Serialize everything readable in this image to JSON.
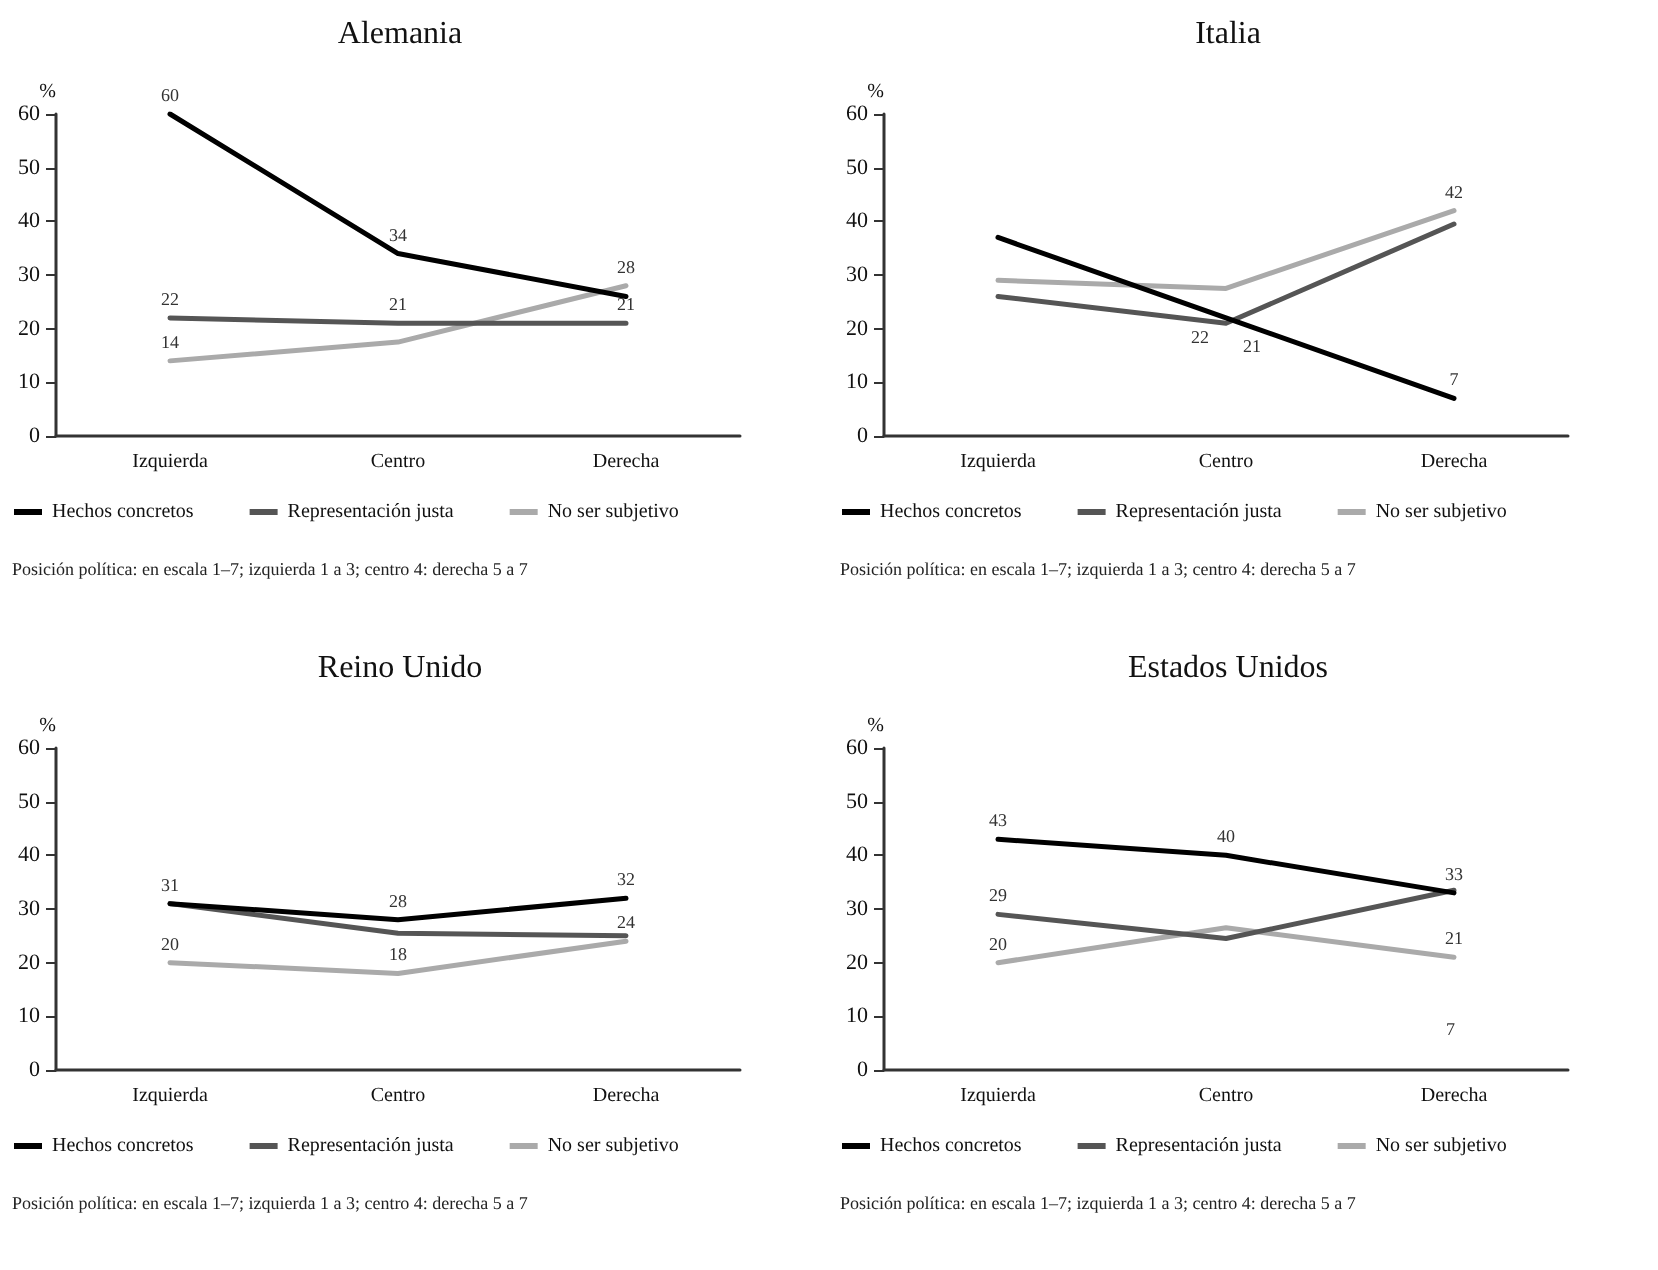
{
  "chart_data": [
    {
      "type": "line",
      "title": "Alemania",
      "ylabel": "%",
      "categories": [
        "Izquierda",
        "Centro",
        "Derecha"
      ],
      "ylim": [
        0,
        60
      ],
      "yticks": [
        0,
        10,
        20,
        30,
        40,
        50,
        60
      ],
      "grid": false,
      "legend": "bottom",
      "marker": "none",
      "line_style": "solid",
      "annotations": [
        "Posición política: en escala 1–7; izquierda 1 a 3; centro 4: derecha 5 a 7"
      ],
      "series": [
        {
          "name": "Hechos concretos",
          "color": "#000000",
          "values": [
            60,
            34,
            26
          ],
          "value_labels": [
            "60",
            "34",
            null
          ]
        },
        {
          "name": "Representación justa",
          "color": "#555555",
          "values": [
            22,
            21,
            21
          ],
          "value_labels": [
            "22",
            "21",
            "21"
          ]
        },
        {
          "name": "No ser subjetivo",
          "color": "#aaaaaa",
          "values": [
            14,
            17.5,
            28
          ],
          "value_labels": [
            "14",
            null,
            "28"
          ]
        }
      ]
    },
    {
      "type": "line",
      "title": "Italia",
      "ylabel": "%",
      "categories": [
        "Izquierda",
        "Centro",
        "Derecha"
      ],
      "ylim": [
        0,
        60
      ],
      "yticks": [
        0,
        10,
        20,
        30,
        40,
        50,
        60
      ],
      "grid": false,
      "legend": "bottom",
      "marker": "none",
      "line_style": "solid",
      "annotations": [
        "Posición política: en escala 1–7; izquierda 1 a 3; centro 4: derecha 5 a 7"
      ],
      "series": [
        {
          "name": "Hechos concretos",
          "color": "#000000",
          "values": [
            37,
            22,
            7
          ],
          "value_labels": [
            null,
            "22",
            "7"
          ]
        },
        {
          "name": "Representación justa",
          "color": "#555555",
          "values": [
            26,
            21,
            39.5
          ],
          "value_labels": [
            null,
            "21",
            null
          ]
        },
        {
          "name": "No ser subjetivo",
          "color": "#aaaaaa",
          "values": [
            29,
            27.5,
            42
          ],
          "value_labels": [
            null,
            null,
            "42"
          ]
        }
      ]
    },
    {
      "type": "line",
      "title": "Reino Unido",
      "ylabel": "%",
      "categories": [
        "Izquierda",
        "Centro",
        "Derecha"
      ],
      "ylim": [
        0,
        60
      ],
      "yticks": [
        0,
        10,
        20,
        30,
        40,
        50,
        60
      ],
      "grid": false,
      "legend": "bottom",
      "marker": "none",
      "line_style": "solid",
      "annotations": [
        "Posición política: en escala 1–7; izquierda 1 a 3; centro 4: derecha 5 a 7"
      ],
      "series": [
        {
          "name": "Hechos concretos",
          "color": "#000000",
          "values": [
            31,
            28,
            32
          ],
          "value_labels": [
            "31",
            "28",
            "32"
          ]
        },
        {
          "name": "Representación justa",
          "color": "#555555",
          "values": [
            31,
            25.5,
            25
          ],
          "value_labels": [
            null,
            null,
            null
          ]
        },
        {
          "name": "No ser subjetivo",
          "color": "#aaaaaa",
          "values": [
            20,
            18,
            24
          ],
          "value_labels": [
            "20",
            "18",
            "24"
          ]
        }
      ]
    },
    {
      "type": "line",
      "title": "Estados Unidos",
      "ylabel": "%",
      "categories": [
        "Izquierda",
        "Centro",
        "Derecha"
      ],
      "ylim": [
        0,
        60
      ],
      "yticks": [
        0,
        10,
        20,
        30,
        40,
        50,
        60
      ],
      "grid": false,
      "legend": "bottom",
      "marker": "none",
      "line_style": "solid",
      "annotations": [
        "7",
        "Posición política: en escala 1–7; izquierda 1 a 3; centro 4: derecha 5 a 7"
      ],
      "series": [
        {
          "name": "Hechos concretos",
          "color": "#000000",
          "values": [
            43,
            40,
            33
          ],
          "value_labels": [
            "43",
            "40",
            "33"
          ]
        },
        {
          "name": "Representación justa",
          "color": "#555555",
          "values": [
            29,
            24.5,
            33.5
          ],
          "value_labels": [
            "29",
            null,
            null
          ]
        },
        {
          "name": "No ser subjetivo",
          "color": "#aaaaaa",
          "values": [
            20,
            26.5,
            21
          ],
          "value_labels": [
            "20",
            null,
            "21"
          ]
        }
      ]
    }
  ]
}
